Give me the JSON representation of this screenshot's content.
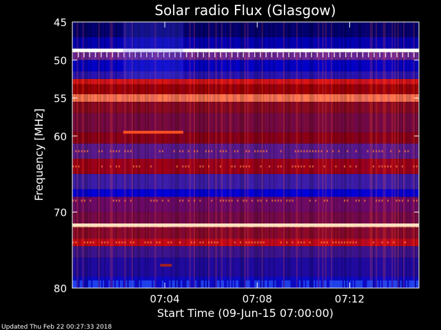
{
  "chart_data": {
    "type": "heatmap",
    "title": "Solar radio Flux (Glasgow)",
    "xlabel": "Start Time (09-Jun-15 07:00:00)",
    "ylabel": "Frequency [MHz]",
    "x_unit": "minutes after 07:00:00",
    "xlim": [
      0,
      15
    ],
    "ylim": [
      45,
      80
    ],
    "y_axis_inverted": true,
    "x_ticks": [
      {
        "value": 4,
        "label": "07:04"
      },
      {
        "value": 8,
        "label": "07:08"
      },
      {
        "value": 12,
        "label": "07:12"
      }
    ],
    "y_ticks": [
      {
        "value": 45,
        "label": "45"
      },
      {
        "value": 50,
        "label": "50"
      },
      {
        "value": 55,
        "label": "55"
      },
      {
        "value": 60,
        "label": "60"
      },
      {
        "value": 70,
        "label": "70"
      },
      {
        "value": 80,
        "label": "80"
      }
    ],
    "colors": {
      "low": "#0000ff",
      "mid": "#8b0000",
      "high": "#ffffff",
      "background": "#000000",
      "axis": "#ffffff"
    },
    "frequency_bands": [
      {
        "from": 45.0,
        "to": 47.0,
        "color": "#00006e"
      },
      {
        "from": 47.0,
        "to": 48.5,
        "color": "#0000b4"
      },
      {
        "from": 48.5,
        "to": 49.0,
        "color": "#ffffff"
      },
      {
        "from": 49.0,
        "to": 50.0,
        "color": "#6e2896"
      },
      {
        "from": 50.0,
        "to": 51.5,
        "color": "#0000c8"
      },
      {
        "from": 51.5,
        "to": 52.5,
        "color": "#2814b4"
      },
      {
        "from": 52.5,
        "to": 53.2,
        "color": "#dc1414"
      },
      {
        "from": 53.2,
        "to": 54.5,
        "color": "#a00000"
      },
      {
        "from": 54.5,
        "to": 55.5,
        "color": "#ff7850"
      },
      {
        "from": 55.5,
        "to": 57.0,
        "color": "#8c0a1e"
      },
      {
        "from": 57.0,
        "to": 59.5,
        "color": "#780a3c"
      },
      {
        "from": 59.5,
        "to": 61.0,
        "color": "#8c0014"
      },
      {
        "from": 61.0,
        "to": 63.0,
        "color": "#5a1a8c"
      },
      {
        "from": 63.0,
        "to": 65.0,
        "color": "#a00014"
      },
      {
        "from": 65.0,
        "to": 67.0,
        "color": "#3c1eaa"
      },
      {
        "from": 67.0,
        "to": 68.0,
        "color": "#0000dc"
      },
      {
        "from": 68.0,
        "to": 70.0,
        "color": "#6e0a64"
      },
      {
        "from": 70.0,
        "to": 71.5,
        "color": "#780a46"
      },
      {
        "from": 71.5,
        "to": 72.0,
        "color": "#ffc8a0"
      },
      {
        "from": 72.0,
        "to": 73.5,
        "color": "#8c0a28"
      },
      {
        "from": 73.5,
        "to": 74.5,
        "color": "#c80a14"
      },
      {
        "from": 74.5,
        "to": 76.0,
        "color": "#3c148c"
      },
      {
        "from": 76.0,
        "to": 78.5,
        "color": "#1e0aa0"
      },
      {
        "from": 78.5,
        "to": 80.0,
        "color": "#0a0ac8"
      }
    ],
    "features": [
      {
        "name": "bright-line",
        "freq": 48.7,
        "description_color": "#ffffff"
      },
      {
        "name": "bright-line",
        "freq": 71.7,
        "description_color": "#ffe0c0"
      },
      {
        "name": "burst",
        "t_start": 2.2,
        "t_end": 4.8,
        "freq": 59.5,
        "description_color": "#ff5020"
      },
      {
        "name": "burst",
        "t_start": 3.8,
        "t_end": 4.3,
        "freq": 77.0,
        "description_color": "#a02020"
      }
    ]
  },
  "footer": {
    "updated": "Updated Thu Feb 22 00:27:33 2018"
  }
}
